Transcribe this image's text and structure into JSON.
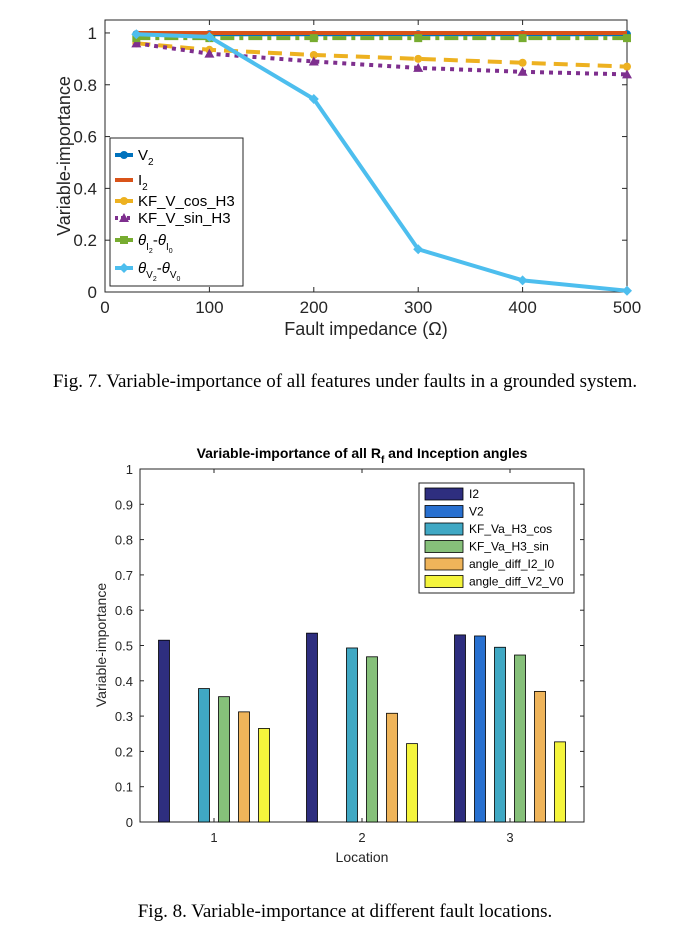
{
  "figure7": {
    "caption": "Fig. 7.  Variable-importance of all features under faults in a grounded system.",
    "chart_data": {
      "type": "line",
      "xlabel": "Fault impedance (Ω)",
      "ylabel": "Variable-importance",
      "xlim": [
        0,
        500
      ],
      "ylim": [
        0,
        1.05
      ],
      "xticks": [
        "0",
        "100",
        "200",
        "300",
        "400",
        "500"
      ],
      "yticks": [
        "0",
        "0.2",
        "0.4",
        "0.6",
        "0.8",
        "1"
      ],
      "x": [
        30,
        100,
        200,
        300,
        400,
        500
      ],
      "legend_position": "lower-left",
      "series": [
        {
          "name": "V2",
          "color": "#0072BD",
          "dash": "solid",
          "marker": "circle",
          "legend": {
            "base": "V",
            "sub": "2"
          },
          "values": [
            0.995,
            0.995,
            0.995,
            0.995,
            0.995,
            0.995
          ]
        },
        {
          "name": "I2",
          "color": "#D95319",
          "dash": "solid",
          "marker": "none",
          "legend": {
            "base": "I",
            "sub": "2"
          },
          "values": [
            1.0,
            1.0,
            1.0,
            1.0,
            1.0,
            1.0
          ]
        },
        {
          "name": "KF_V_cos_H3",
          "color": "#EDB120",
          "dash": "dash",
          "marker": "circle",
          "values": [
            0.96,
            0.935,
            0.915,
            0.9,
            0.885,
            0.87
          ]
        },
        {
          "name": "KF_V_sin_H3",
          "color": "#7E2F8E",
          "dash": "dot",
          "marker": "triangle",
          "values": [
            0.96,
            0.92,
            0.89,
            0.865,
            0.85,
            0.84
          ]
        },
        {
          "name": "θI2-θI0",
          "color": "#77AC30",
          "dash": "dashdot",
          "marker": "square",
          "legend": {
            "theta_sub1": "I",
            "theta_sub2": "2",
            "theta_sub3": "I",
            "theta_sub4": "0"
          },
          "values": [
            0.98,
            0.98,
            0.98,
            0.98,
            0.98,
            0.98
          ]
        },
        {
          "name": "θV2-θV0",
          "color": "#4DBEEE",
          "dash": "solid",
          "marker": "diamond",
          "legend": {
            "theta_sub1": "V",
            "theta_sub2": "2",
            "theta_sub3": "V",
            "theta_sub4": "0"
          },
          "values": [
            0.995,
            0.985,
            0.745,
            0.165,
            0.045,
            0.005
          ]
        }
      ]
    }
  },
  "figure8": {
    "caption": "Fig. 8.  Variable-importance at different fault locations.",
    "chart_data": {
      "type": "bar",
      "title": "Variable-importance of all R",
      "title_sub": "f",
      "title_rest": " and Inception angles",
      "xlabel": "Location",
      "ylabel": "Variable-importance",
      "ylim": [
        0,
        1
      ],
      "yticks": [
        "0",
        "0.1",
        "0.2",
        "0.3",
        "0.4",
        "0.5",
        "0.6",
        "0.7",
        "0.8",
        "0.9",
        "1"
      ],
      "categories": [
        "1",
        "2",
        "3"
      ],
      "legend_position": "top-right",
      "series": [
        {
          "name": "I2",
          "color": "#2E2E7F",
          "values": [
            0.515,
            0.535,
            0.53
          ]
        },
        {
          "name": "V2",
          "color": "#2870D0",
          "values": [
            0.0,
            0.0,
            0.527
          ]
        },
        {
          "name": "KF_Va_H3_cos",
          "color": "#40A8C4",
          "values": [
            0.378,
            0.493,
            0.495
          ]
        },
        {
          "name": "KF_Va_H3_sin",
          "color": "#86C07A",
          "values": [
            0.355,
            0.468,
            0.473
          ]
        },
        {
          "name": "angle_diff_I2_I0",
          "color": "#EFB45A",
          "values": [
            0.312,
            0.308,
            0.37
          ]
        },
        {
          "name": "angle_diff_V2_V0",
          "color": "#F4F43C",
          "values": [
            0.265,
            0.222,
            0.227
          ]
        }
      ]
    }
  }
}
